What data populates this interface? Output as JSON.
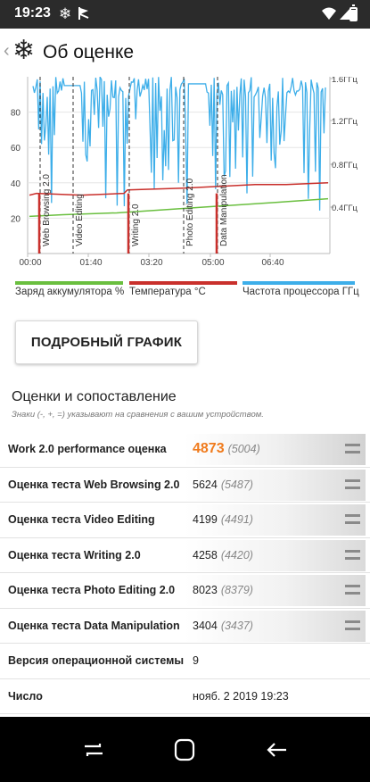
{
  "status_bar": {
    "time": "19:23",
    "icons": [
      "snowflake-icon",
      "flag-icon",
      "wifi-icon",
      "cell-signal-icon",
      "battery-icon"
    ]
  },
  "app_bar": {
    "title": "Об оценке",
    "logo_icon": "snowflake-icon",
    "back_icon": "chevron-left-icon"
  },
  "chart_data": {
    "type": "line",
    "left_axis": {
      "ticks": [
        "20",
        "40",
        "60",
        "80"
      ],
      "range": [
        0,
        100
      ]
    },
    "right_axis": {
      "ticks": [
        "0.4ГГц",
        "0.8ГГц",
        "1.2ГГц",
        "1.6ГГц"
      ]
    },
    "x_ticks": [
      "00:00",
      "01:40",
      "03:20",
      "05:00",
      "06:40"
    ],
    "test_markers": [
      "Web Browsing 2.0",
      "Video Editing",
      "Writing 2.0",
      "Photo Editing 2.0",
      "Data Manipulation"
    ],
    "legend": [
      {
        "label": "Заряд аккумулятора %",
        "color": "#6abf3f"
      },
      {
        "label": "Температура °C",
        "color": "#c9302c"
      },
      {
        "label": "Частота процессора ГГц",
        "color": "#3daee9"
      }
    ]
  },
  "detail_button": {
    "label": "ПОДРОБНЫЙ ГРАФИК"
  },
  "scores_section": {
    "title": "Оценки и сопоставление",
    "hint": "Знаки (-, +, =) указывают на сравнения с вашим устройством."
  },
  "scores": [
    {
      "name": "Work 2.0 performance оценка",
      "value": "4873",
      "compare": "(5004)"
    },
    {
      "name": "Оценка теста Web Browsing 2.0",
      "value": "5624",
      "compare": "(5487)"
    },
    {
      "name": "Оценка теста Video Editing",
      "value": "4199",
      "compare": "(4491)"
    },
    {
      "name": "Оценка теста Writing 2.0",
      "value": "4258",
      "compare": "(4420)"
    },
    {
      "name": "Оценка теста Photo Editing 2.0",
      "value": "8023",
      "compare": "(8379)"
    },
    {
      "name": "Оценка теста Data Manipulation",
      "value": "3404",
      "compare": "(3437)"
    }
  ],
  "info_rows": [
    {
      "name": "Версия операционной системы",
      "value": "9"
    },
    {
      "name": "Число",
      "value": "нояб. 2 2019 19:23"
    }
  ]
}
